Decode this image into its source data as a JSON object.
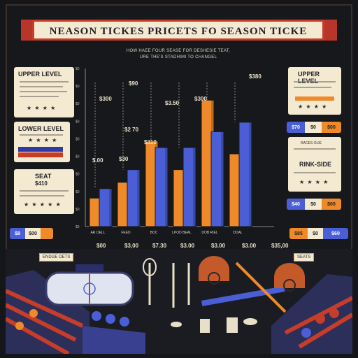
{
  "header": {
    "title": "NEASON TICKES PRICETS FO  SEASON TICKE",
    "subtitle_line1": "HOW HAEE FOUR SEASE FOR DESHESIE TEAT,",
    "subtitle_line2": "URE THE'S STADHIMI TO CHANGEL"
  },
  "panels": {
    "upper_left": {
      "title": "UPPER LEVEL",
      "stars": "★ ★ ★ ★"
    },
    "lower_left": {
      "title": "LOWER LEVEL",
      "stars": "★ ★ ★ ★"
    },
    "seat_left": {
      "title": "SEAT",
      "price": "$410",
      "stars": "★ ★ ★ ★ ★"
    },
    "bottom_left": {
      "a": "$8",
      "b": "$00"
    },
    "upper_right": {
      "title": "UPPER LEVEL",
      "stars": "★ ★ ★ ★"
    },
    "right_pills_1": {
      "a": "$70",
      "b": "$0",
      "c": "$00"
    },
    "rink_side": {
      "small": "RACES OLIE",
      "title": "RINK-SIDE",
      "stars": "★ ★ ★ ★"
    },
    "right_pills_2": {
      "a": "$40",
      "b": "$0",
      "c": "$00"
    },
    "bottom_right": {
      "a": "$85",
      "b": "$0",
      "c": "$60"
    }
  },
  "arena": {
    "left_label": "ENDGE OETS",
    "right_label": "SEATS"
  },
  "colors": {
    "orange": "#ef8a2a",
    "blue": "#4a5fd6",
    "cream": "#f4ead2",
    "red": "#c63d2a",
    "dark": "#17181c"
  },
  "chart_data": {
    "type": "bar",
    "title": "",
    "xlabel": "",
    "ylabel": "",
    "ylim": [
      0,
      100
    ],
    "y_ticks": [
      "$0",
      "$0",
      "$0",
      "$0",
      "$0",
      "$0",
      "$0",
      "$0",
      "$0",
      "$0"
    ],
    "categories": [
      "AR OELL",
      "FEED",
      "BOC",
      "LPOD BEAL",
      "DOB RIEL",
      "DOAL"
    ],
    "series": [
      {
        "color": "#ef8a2a",
        "values": [
          18,
          28,
          54,
          36,
          80,
          46
        ]
      },
      {
        "color": "#4a5fd6",
        "values": [
          24,
          36,
          50,
          50,
          60,
          66
        ]
      }
    ],
    "value_labels": [
      "$.00",
      "$30",
      "$2 70",
      "$310",
      "$3.50",
      "$90",
      "$300",
      "$300",
      "$380"
    ],
    "price_labels": [
      "$00",
      "$3,00",
      "$7.30",
      "$3.00",
      "$3.00",
      "$3.00",
      "$35,00"
    ]
  }
}
